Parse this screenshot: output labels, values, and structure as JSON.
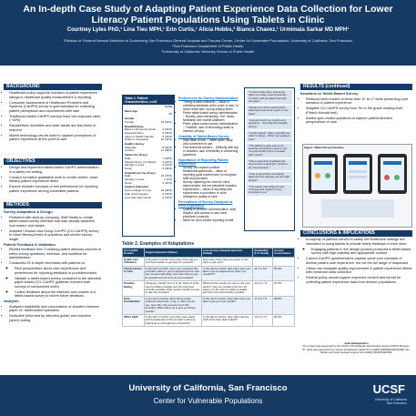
{
  "header": {
    "title": "An In-depth Case Study of Adapting Patient Experience Data Collection for Lower Literacy Patient Populations Using Tablets in Clinic",
    "authors": "Courtney Lyles PhD,¹ Lina Tieu MPH,¹ Erin Curtis,¹ Alicia Hobbs,² Bianca Chavez,¹ Urmimala Sarkar MD MPH¹",
    "affiliations": [
      "¹Division of General Internal Medicine at Zuckerberg San Francisco General Hospital and Trauma Center, Center for Vulnerable Populations, University of California, San Francisco",
      "²San Francisco Department of Public Health",
      "³University of California, Berkeley School of Public Health"
    ]
  },
  "background": {
    "heading": "BACKGROUND",
    "bullets": [
      "Healthcare policy supports inclusion of patient experience ratings in healthcare quality measurement & reporting",
      "Consumer Assessment of Healthcare Providers and Systems (CAHPS) survey is gold standard for collecting patient perceptions and experiences with care",
      "Traditional mailed CAHPS surveys have low response rates (~30%)",
      "Racial/ethnic minorities and older adults are less likely to respond",
      "Mobile technology can be used to capture perceptions of patient experience at the point of care"
    ]
  },
  "objectives": {
    "heading": "OBJECTIVES",
    "bullets": [
      "Design and implement tablet-based CAHPS administration in a safety net setting",
      "Conduct formative qualitative work to create shorter, lower literacy patient experience items",
      "Explore broader concepts of and preferences for reporting patient experience among vulnerable patients"
    ]
  },
  "methods": {
    "heading": "METHODS",
    "sub1": "Survey Adaptation & Design",
    "bullets1": [
      "Partnered with start-up company, Shift Health to create tablet-based survey interface that was visually attractive, icon-based, and simple",
      "Adapted Clinician and Group CAHPS (CG-CAHPS) survey to lower literacy levels of questions and shorter survey length"
    ],
    "sub2": "Patient Feedback & Validation",
    "bullets2": [
      "Elicited feedback from 3 existing patient advisory councils to refine survey questions, interface, and workflow for administration",
      "Conducted 25 in-depth interviews with patients to:"
    ],
    "subbullets": [
      "Elicit perspectives about care experiences and preferences for reporting feedback to providers/clinics",
      "Validate a tablet-based survey compared to the standard paper-based (CG-CAHPS (patients received both surveys in randomized order)",
      "Collect feedback about the interface and content of a tablet-based survey to inform future iterations"
    ],
    "sub3": "Analysis",
    "bullets3": [
      "Analyzed readability and concordance of answers between paper vs. tablet-based questions",
      "Deductive (informed by interview guide) and inductive (open) coding"
    ]
  },
  "characteristics": {
    "heading": "Table 1. Patient Characteristics, n=25",
    "col_label": "N (%)",
    "groups": [
      {
        "label": "Mean Age",
        "rows": [
          [
            "",
            "55"
          ]
        ]
      },
      {
        "label": "Gender",
        "rows": [
          [
            "Female",
            "13 (52%)"
          ]
        ]
      },
      {
        "label": "Race/Ethnicity",
        "rows": [
          [
            "Black or African American",
            "5 (20%)"
          ],
          [
            "Hispanic/Latino",
            "5 (20%)"
          ],
          [
            "Asian or Pacific Islander",
            "5 (20%)"
          ],
          [
            "White or Caucasian",
            "10 (40%)"
          ]
        ]
      },
      {
        "label": "Health Literacy",
        "rows": [
          [
            "Adequate",
            "8 (32%)"
          ],
          [
            "Limited",
            "17 (68%)"
          ]
        ]
      },
      {
        "label": "Tablet Use (Freq.)",
        "rows": [
          [
            "Daily",
            "7 (28%)"
          ],
          [
            "Weekly/ Every 2-3 Weeks",
            "6 (24%)"
          ],
          [
            "Monthly or Less",
            "3 (12%)"
          ],
          [
            "Never",
            "9 (36%)"
          ]
        ]
      },
      {
        "label": "Smartphone Use (Freq.)",
        "rows": [
          [
            "Daily",
            "19 (76%)"
          ],
          [
            "Monthly or Less",
            "1 (4%)"
          ],
          [
            "Never",
            "5 (20%)"
          ]
        ]
      },
      {
        "label": "Highest Education",
        "rows": [
          [
            "Some college or more",
            "12 (48%)"
          ],
          [
            "High school degree",
            "6 (24%)"
          ],
          [
            "Less than high school",
            "6 (24%)"
          ]
        ]
      }
    ]
  },
  "themes": [
    {
      "heading": "Preferences for Survey Administration",
      "bullets": [
        "Timing of data collection – Value of collecting feedback at the point of care, to avoid recall bias, during waiting times",
        "Prefer tablet-based survey administration – Novelty, jobs interactivity, \"fun\" factor, familiarity with mobile platforms",
        "Prefer paper-based survey administration – Tradition, lack of technology skills or interest, privacy"
      ]
    },
    {
      "heading": "Usability of Tablet-Based Survey",
      "bullets": [
        "High ease of use – Tablet quick, easy, and convenient to use",
        "Few technical barriers – Difficulty with tap or answers, lack of flexibility in answering questions"
      ]
    },
    {
      "heading": "Importance of Reporting Patient Experience",
      "bullets": [
        "Survey can capture positive feedback/experiences – Value of reporting good experiences to recognize staff and providers",
        "Survey capturing the need for clinic improvement, but not prevalent negative experiences – Value of reporting bad experiences to providers or drive changes to quality of care"
      ]
    },
    {
      "heading": "Perceptions of Survey Catalysts of Poor Experience",
      "bullets": [
        "Quality of provider communication, staff respect, and access to care were prioritized concepts",
        "Need for open-ended reporting format"
      ]
    }
  ],
  "quotes": [
    "\"I'm kind of like when [someone] asks me to take a test sometimes... I'm better with the tablet than with the paper.\"",
    "\"People are used to seeing stuff that's been around for years on the paper.\"",
    "\"Just don't worry too much [over] questions... Just think first thought, and go.\"",
    "\"I prefer [paper]. I like to actually see what I'm doing... What I am saying to read.\"",
    "\"This [tablet] is quite easy to do because everything is easy to see. You just decide how is to answer with a touch.\"",
    "\"I like to give them feedback that they've done a great job. I think for any improvement...\"",
    "\"I feel so good when somebody takes the time and give you the right answer.\"",
    "\"The reason I like what you say: 'Courtesy and respect' is very important to me.\""
  ],
  "table2": {
    "heading": "Table 2. Examples of Adaptations",
    "columns": [
      "CG-CAHPS Domain",
      "Original Question (Paper)",
      "Low-Literacy Adapted Question (Tablet)",
      "Readability (F-K Grade)",
      "Answer Concordance"
    ],
    "rows": [
      [
        "Health Care Utilization",
        "In the last 6 months, how many times did you visit this provider to get care for yourself?",
        "How many times have you gone to this clinic to get care?",
        "",
        ""
      ],
      [
        "Timely Access to Care",
        "In the last 6 months, when you contacted this provider's office to get an appointment for care you needed right away, how often did you get an appointment as soon as you needed?",
        "In the last 6 months: How often were you able to get an appointment when you needed it?",
        "13.7 to 6.6",
        "80.4%"
      ],
      [
        "Provider Rating",
        "Using any number from 0 to 10, where 0 is the worst provider possible and 10 is the best provider possible, what number would you use to rate this provider?",
        "What number would you use to rate your doctor? Use any number from 0 to 10, where 0 is the worst provider possible and 10 is the best provider possible.",
        "14.2 to 7.3",
        "87.5%"
      ],
      [
        "Care Coordination",
        "In the last 6 months, when this provider ordered a blood test, x-ray, or other test for you, how often did someone from this provider's office follow up to give you those results?",
        "In the last 6 months: How often were you able to get your test results?",
        "17.4 to 7.9",
        "58.8%"
      ],
      [
        "Office Staff",
        "In the last 6 months, how often were clerks and receptionists at this provider's office as helpful as you thought they should be?",
        "In the last 6 months: How often was the staff at the front desk helpful?",
        "13.5 to 4.1",
        "84.0%"
      ]
    ]
  },
  "results": {
    "heading": "RESULTS (continued)",
    "sub": "Iterations to Tablet-Based Survey",
    "bullets": [
      "Reduced total number of items from 37 to 17 while preserving core domains of patient experience",
      "Adapted CG-CAHPS survey from 7th to 5th grade reading level (Flesch-Kincaid test)",
      "Added open-ended questions to capture patient-directed perspectives of care"
    ],
    "figure_title": "Figure: Tablet Survey Interface"
  },
  "conclusions": {
    "heading": "CONCLUSIONS & IMPLICATIONS",
    "bullets": [
      "A majority of patients served in safety net healthcare settings are interested in using tablets to provide timely feedback to their clinic:",
      "Current CAHPS questionnaires capture some core concepts of diverse patient care experience, but not the full range of responses",
      "Clinics can integrate quality improvement & patient experience efforts with enhanced data collection",
      "Federal policy should support improved content and format for collecting patient experience data from diverse populations"
    ],
    "subbullets": [
      "Engaging patients in the design process produced a tablet-based survey with high usability and appropriate content"
    ]
  },
  "acknowledgments": {
    "heading": "Acknowledgements",
    "text": "The project was supported by the UCSF CTSI Strategic Opportunities Support (SOS) Program. Dr. Lyles was supported by a career development award from AHRQ (K99/R00HS022408). Drs. Sarkar and Lyles received support from AHRQ (R01HS022408)."
  },
  "footer": {
    "line1": "University of California, San Francisco",
    "line2": "Center for Vulnerable Populations",
    "logo": "UCSF",
    "logo_sub": "University of California San Francisco"
  },
  "colors": {
    "brand": "#153a63",
    "accent": "#1e6fb5",
    "quote_bg": "#d9e4f1"
  }
}
